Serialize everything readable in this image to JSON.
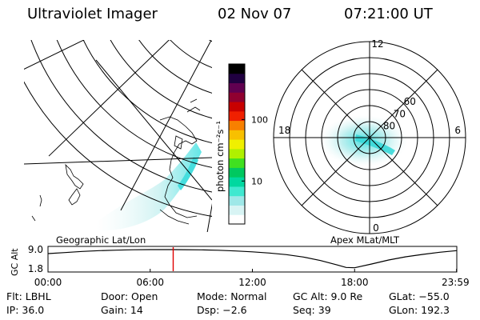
{
  "header": {
    "instrument": "Ultraviolet Imager",
    "date": "02 Nov 07",
    "time": "07:21:00 UT"
  },
  "colorbar": {
    "unit_label": "photon cm⁻²s⁻¹",
    "ticks": [
      {
        "value": 100,
        "label": "100"
      },
      {
        "value": 10,
        "label": "10"
      }
    ],
    "range": [
      2,
      800
    ],
    "scale": "log",
    "colors": [
      "#ffffff",
      "#d8f4f4",
      "#9ee8e8",
      "#40e8d0",
      "#00d8a0",
      "#00c860",
      "#40e020",
      "#b0f000",
      "#f0f000",
      "#f8c000",
      "#f88000",
      "#f02000",
      "#c80000",
      "#900030",
      "#600050",
      "#200040",
      "#000000"
    ]
  },
  "left_panel": {
    "label": "Geographic Lat/Lon"
  },
  "right_panel": {
    "label": "Apex MLat/MLT",
    "mlt_labels": [
      {
        "text": "12",
        "angle": 90
      },
      {
        "text": "18",
        "angle": 180
      },
      {
        "text": "6",
        "angle": 0
      },
      {
        "text": "0",
        "angle": 270
      }
    ],
    "lat_labels": [
      {
        "text": "60",
        "lat": 60
      },
      {
        "text": "70",
        "lat": 70
      },
      {
        "text": "80",
        "lat": 80
      }
    ]
  },
  "altitude_plot": {
    "ylabel": "GC Alt",
    "y_ticks": [
      {
        "value": 9.0,
        "label": "9.0"
      },
      {
        "value": 1.8,
        "label": "1.8"
      }
    ],
    "x_ticks": [
      {
        "hour": 0,
        "label": "00:00"
      },
      {
        "hour": 6,
        "label": "06:00"
      },
      {
        "hour": 12,
        "label": "12:00"
      },
      {
        "hour": 18,
        "label": "18:00"
      },
      {
        "hour": 23.983,
        "label": "23:59"
      }
    ],
    "xlim": [
      0,
      24
    ],
    "ylim": [
      1.8,
      9.0
    ],
    "curve_hours": [
      0.0,
      1.0,
      2.0,
      3.0,
      4.0,
      5.0,
      6.0,
      6.5,
      7.0,
      7.35,
      8.0,
      9.0,
      10.0,
      11.0,
      12.0,
      13.0,
      14.0,
      15.0,
      16.0,
      17.0,
      17.5,
      18.0,
      19.0,
      20.0,
      21.0,
      22.0,
      23.0,
      23.983
    ],
    "curve_alt": [
      7.5,
      7.9,
      8.3,
      8.6,
      8.8,
      8.95,
      9.0,
      9.0,
      9.0,
      9.0,
      8.98,
      8.9,
      8.75,
      8.5,
      8.15,
      7.7,
      7.1,
      6.2,
      4.9,
      3.2,
      2.3,
      2.2,
      3.6,
      5.1,
      6.3,
      7.2,
      8.0,
      8.6
    ],
    "marker_hour": 7.35,
    "marker_color": "#e00000"
  },
  "footer": {
    "filter": "Flt: LBHL",
    "door": "Door: Open",
    "mode": "Mode: Normal",
    "gc_alt": "GC Alt: 9.0 Re",
    "glat": "GLat: −55.0",
    "ip": "IP: 36.0",
    "gain": "Gain: 14",
    "dsp": "Dsp:    −2.6",
    "seq": "Seq: 39",
    "glon": "GLon: 192.3"
  }
}
